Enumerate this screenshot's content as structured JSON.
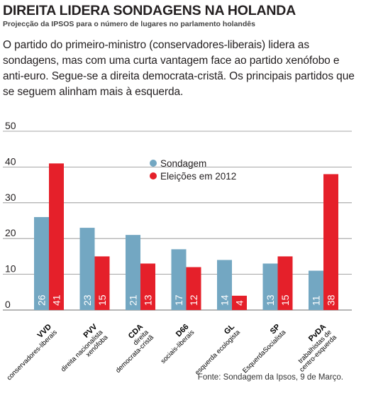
{
  "title": "DIREITA LIDERA SONDAGENS NA HOLANDA",
  "subtitle": "Projecção da IPSOS para o número de lugares no parlamento holandês",
  "lead": "O partido do primeiro-ministro (conservadores-liberais) lidera as sondagens, mas com uma curta vantagem face ao partido xenófobo e anti-euro. Segue-se a direita democrata-cristã. Os principais partidos que se seguem alinham mais à esquerda.",
  "source": "Fonte: Sondagem da Ipsos, 9 de Março.",
  "colors": {
    "sondagem": "#73a7c2",
    "eleicoes": "#e5202a",
    "grid": "#8a8a8a"
  },
  "chart_data": {
    "type": "bar",
    "categories": [
      "VVD",
      "PVV",
      "CDA",
      "D66",
      "GL",
      "SP",
      "PvDA"
    ],
    "category_descriptions": [
      [
        "conservadores-liberais"
      ],
      [
        "direita nacionalista",
        "xenófoba"
      ],
      [
        "direita",
        "democrata-cristã"
      ],
      [
        "sociais-liberais"
      ],
      [
        "esquerda ecologista"
      ],
      [
        "EsquerdaSocialista"
      ],
      [
        "trabalhistas de",
        "centro-esquerda"
      ]
    ],
    "series": [
      {
        "name": "Sondagem",
        "values": [
          26,
          23,
          21,
          17,
          14,
          13,
          11
        ]
      },
      {
        "name": "Eleições em 2012",
        "values": [
          41,
          15,
          13,
          12,
          4,
          15,
          38
        ]
      }
    ],
    "ylim": [
      0,
      50
    ],
    "yticks": [
      0,
      10,
      20,
      30,
      40,
      50
    ],
    "grid": true,
    "legend": "top-center"
  }
}
